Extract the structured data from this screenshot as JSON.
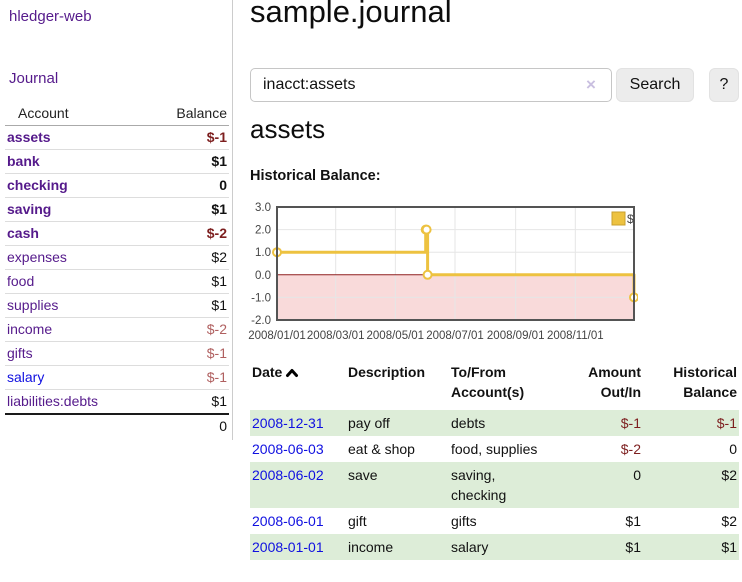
{
  "sidebar": {
    "brand": "hledger-web",
    "nav_journal": "Journal",
    "accounts": {
      "header_account": "Account",
      "header_balance": "Balance",
      "rows": [
        {
          "name": "assets",
          "balance": "$-1"
        },
        {
          "name": "bank",
          "balance": "$1"
        },
        {
          "name": "checking",
          "balance": "0"
        },
        {
          "name": "saving",
          "balance": "$1"
        },
        {
          "name": "cash",
          "balance": "$-2"
        },
        {
          "name": "expenses",
          "balance": "$2"
        },
        {
          "name": "food",
          "balance": "$1"
        },
        {
          "name": "supplies",
          "balance": "$1"
        },
        {
          "name": "income",
          "balance": "$-2"
        },
        {
          "name": "gifts",
          "balance": "$-1"
        },
        {
          "name": "salary",
          "balance": "$-1"
        },
        {
          "name": "liabilities:debts",
          "balance": "$1"
        }
      ],
      "total": "0"
    }
  },
  "main": {
    "title": "sample.journal",
    "search": {
      "value": "inacct:assets",
      "clear_icon": "×",
      "search_button": "Search",
      "help_button": "?"
    },
    "account_heading": "assets",
    "chart_label": "Historical Balance:",
    "register": {
      "headers": {
        "date": "Date",
        "description": "Description",
        "tofrom1": "To/From",
        "tofrom2": "Account(s)",
        "amount1": "Amount",
        "amount2": "Out/In",
        "hist1": "Historical",
        "hist2": "Balance"
      },
      "rows": [
        {
          "date": "2008-12-31",
          "description": "pay off",
          "accounts": "debts",
          "amount": "$-1",
          "balance": "$-1"
        },
        {
          "date": "2008-06-03",
          "description": "eat & shop",
          "accounts": "food, supplies",
          "amount": "$-2",
          "balance": "0"
        },
        {
          "date": "2008-06-02",
          "description": "save",
          "accounts": "saving, checking",
          "amount": "0",
          "balance": "$2"
        },
        {
          "date": "2008-06-01",
          "description": "gift",
          "accounts": "gifts",
          "amount": "$1",
          "balance": "$2"
        },
        {
          "date": "2008-01-01",
          "description": "income",
          "accounts": "salary",
          "amount": "$1",
          "balance": "$1"
        }
      ]
    }
  },
  "chart_data": {
    "type": "line",
    "title": "Historical Balance:",
    "x_range": [
      "2008-01-01",
      "2008-12-31"
    ],
    "ylim": [
      -2,
      3
    ],
    "y_ticks": [
      {
        "v": 3,
        "label": "3.0"
      },
      {
        "v": 2,
        "label": "2.0"
      },
      {
        "v": 1,
        "label": "1.0"
      },
      {
        "v": 0,
        "label": "0.0"
      },
      {
        "v": -1,
        "label": "-1.0"
      },
      {
        "v": -2,
        "label": "-2.0"
      }
    ],
    "x_ticks": [
      {
        "date": "2008-01-01",
        "label": "2008/01/01"
      },
      {
        "date": "2008-03-01",
        "label": "2008/03/01"
      },
      {
        "date": "2008-05-01",
        "label": "2008/05/01"
      },
      {
        "date": "2008-07-01",
        "label": "2008/07/01"
      },
      {
        "date": "2008-09-01",
        "label": "2008/09/01"
      },
      {
        "date": "2008-11-01",
        "label": "2008/11/01"
      }
    ],
    "series": [
      {
        "name": "$",
        "color": "#edc240",
        "marker_fill": "#ffffff",
        "step": true,
        "points": [
          {
            "date": "2008-01-01",
            "value": 1
          },
          {
            "date": "2008-06-01",
            "value": 2
          },
          {
            "date": "2008-06-02",
            "value": 2
          },
          {
            "date": "2008-06-03",
            "value": 0
          },
          {
            "date": "2008-12-31",
            "value": -1
          }
        ]
      }
    ],
    "grid_color": "#e6e6e6",
    "border_color": "#545454",
    "negative_region_fill": "#f9dada",
    "zero_line_color": "#8f1f1f",
    "legend": {
      "label": "$",
      "position": "top-right",
      "swatch_border": "#c9a02e"
    }
  }
}
